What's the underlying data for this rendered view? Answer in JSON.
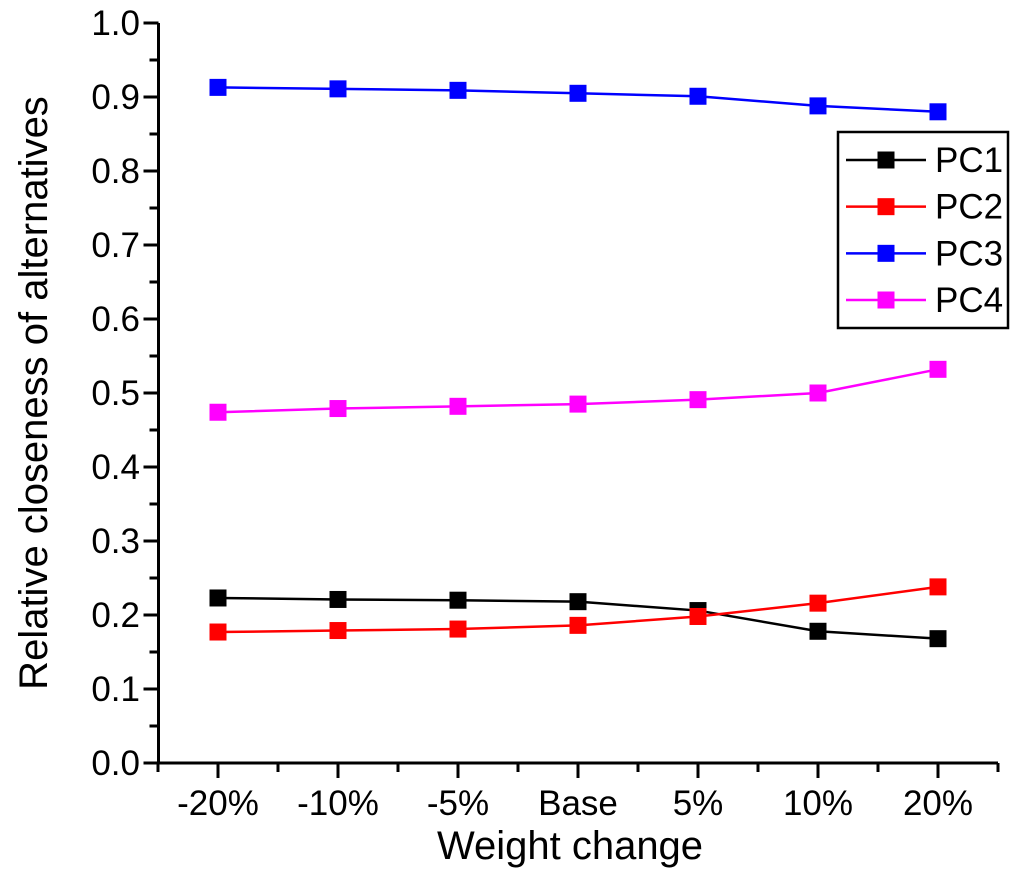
{
  "figure": {
    "background": "#FFFFFF",
    "kind": "sensitivity-analysis-line-chart"
  },
  "chart_data": {
    "type": "line",
    "title": "",
    "xlabel": "Weight change",
    "ylabel": "Relative closeness of alternatives",
    "categories": [
      "-20%",
      "-10%",
      "-5%",
      "Base",
      "5%",
      "10%",
      "20%"
    ],
    "series": [
      {
        "name": "PC1",
        "color": "#000000",
        "marker": "filled-square",
        "values": [
          0.223,
          0.221,
          0.22,
          0.218,
          0.206,
          0.178,
          0.168
        ]
      },
      {
        "name": "PC2",
        "color": "#FF0000",
        "marker": "filled-square",
        "values": [
          0.177,
          0.179,
          0.181,
          0.186,
          0.198,
          0.216,
          0.238
        ]
      },
      {
        "name": "PC3",
        "color": "#0000FF",
        "marker": "filled-square",
        "values": [
          0.913,
          0.911,
          0.909,
          0.905,
          0.901,
          0.888,
          0.88
        ]
      },
      {
        "name": "PC4",
        "color": "#FF00FF",
        "marker": "filled-square",
        "values": [
          0.474,
          0.479,
          0.482,
          0.485,
          0.491,
          0.5,
          0.532
        ]
      }
    ],
    "y_axis": {
      "min": 0.0,
      "max": 1.0,
      "major_step": 0.1,
      "minor_step": 0.05,
      "tick_labels": [
        "0.0",
        "0.1",
        "0.2",
        "0.3",
        "0.4",
        "0.5",
        "0.6",
        "0.7",
        "0.8",
        "0.9",
        "1.0"
      ]
    },
    "x_axis": {
      "tick_labels": [
        "-20%",
        "-10%",
        "-5%",
        "Base",
        "5%",
        "10%",
        "20%"
      ]
    },
    "legend": {
      "position": "upper-right",
      "entries": [
        "PC1",
        "PC2",
        "PC3",
        "PC4"
      ]
    },
    "grid": false
  }
}
